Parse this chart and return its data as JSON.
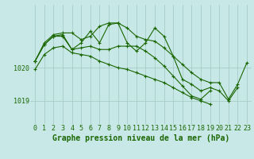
{
  "background_color": "#c8e8e8",
  "line_color": "#1a6600",
  "marker": "+",
  "marker_size": 3,
  "line_width": 0.8,
  "xlabel": "Graphe pression niveau de la mer (hPa)",
  "xlabel_fontsize": 7,
  "tick_fontsize": 6,
  "ytick_positions": [
    1019,
    1020
  ],
  "ytick_labels": [
    "1019",
    "1020"
  ],
  "ylim": [
    1018.3,
    1021.9
  ],
  "xlim": [
    -0.5,
    23.5
  ],
  "grid_color": "#a0c8c0",
  "series": [
    [
      1020.2,
      1020.75,
      1021.0,
      1021.05,
      1021.05,
      1020.85,
      1020.95,
      1021.25,
      1021.35,
      1021.35,
      1021.2,
      1020.95,
      1020.85,
      1020.8,
      1020.6,
      1020.35,
      1020.1,
      1019.85,
      1019.65,
      1019.55,
      1019.55,
      1019.05,
      1019.5,
      1020.15
    ],
    [
      1020.2,
      1020.7,
      1020.95,
      1021.0,
      1020.55,
      1020.75,
      1021.1,
      1020.75,
      1021.3,
      1021.35,
      1020.75,
      1020.5,
      1020.75,
      1021.2,
      1020.95,
      1020.35,
      1019.65,
      1019.5,
      1019.3,
      1019.4,
      1019.3,
      1019.0,
      1019.4,
      null
    ],
    [
      1020.2,
      1020.7,
      1020.95,
      1020.95,
      1020.55,
      1020.6,
      1020.65,
      1020.55,
      1020.55,
      1020.65,
      1020.65,
      1020.65,
      1020.5,
      1020.3,
      1020.05,
      1019.75,
      1019.45,
      1019.15,
      1019.05,
      1019.3,
      null,
      null,
      null,
      null
    ],
    [
      1019.95,
      1020.4,
      1020.6,
      1020.65,
      1020.45,
      1020.4,
      1020.35,
      1020.2,
      1020.1,
      1020.0,
      1019.95,
      1019.85,
      1019.75,
      1019.65,
      1019.55,
      1019.4,
      1019.25,
      1019.1,
      1019.0,
      1018.9,
      null,
      null,
      null,
      null
    ]
  ]
}
